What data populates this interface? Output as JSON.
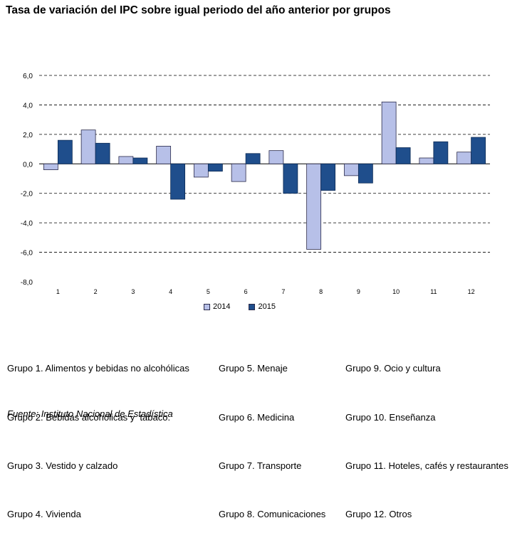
{
  "chart_data": {
    "type": "bar",
    "title": "Tasa de variación del IPC sobre igual periodo del año anterior por grupos",
    "categories": [
      "1",
      "2",
      "3",
      "4",
      "5",
      "6",
      "7",
      "8",
      "9",
      "10",
      "11",
      "12"
    ],
    "series": [
      {
        "name": "2014",
        "color": "#b7c0e8",
        "values": [
          -0.4,
          2.3,
          0.5,
          1.2,
          -0.9,
          -1.2,
          0.9,
          -5.8,
          -0.8,
          4.2,
          0.4,
          0.8
        ]
      },
      {
        "name": "2015",
        "color": "#1f4e8c",
        "values": [
          1.6,
          1.4,
          0.4,
          -2.4,
          -0.5,
          0.7,
          -2.0,
          -1.8,
          -1.3,
          1.1,
          1.5,
          1.8
        ]
      }
    ],
    "ylim": [
      -8,
      6
    ],
    "yticks": [
      6,
      4,
      2,
      0,
      -2,
      -4,
      -6,
      -8
    ],
    "ytick_labels": [
      "6,0",
      "4,0",
      "2,0",
      "0,0",
      "-2,0",
      "-4,0",
      "-6,0",
      "-8,0"
    ],
    "grid": "dashed horizontal",
    "legend_position": "bottom"
  },
  "groups": {
    "col1": [
      "Grupo 1. Alimentos y bebidas no alcohólicas",
      "Grupo 2. Bebidas alcohólicas y  tabaco.",
      "Grupo 3. Vestido y calzado",
      "Grupo 4. Vivienda"
    ],
    "col2": [
      "Grupo 5. Menaje",
      "Grupo 6. Medicina",
      "Grupo 7. Transporte",
      "Grupo 8. Comunicaciones"
    ],
    "col3": [
      "Grupo 9. Ocio y cultura",
      "Grupo 10. Enseñanza",
      "Grupo 11. Hoteles, cafés y restaurantes",
      "Grupo 12. Otros"
    ]
  },
  "source": "Fuente: Instituto Nacional de Estadística"
}
